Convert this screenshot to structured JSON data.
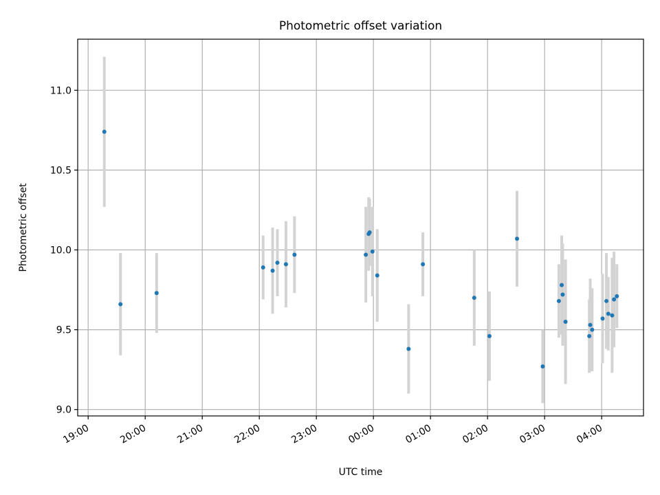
{
  "chart_data": {
    "type": "scatter",
    "title": "Photometric offset variation",
    "xlabel": "UTC time",
    "ylabel": "Photometric offset",
    "xlim": [
      "18:49",
      "04:44"
    ],
    "ylim": [
      8.96,
      11.32
    ],
    "grid": true,
    "x_ticks": [
      "19:00",
      "20:00",
      "21:00",
      "22:00",
      "23:00",
      "00:00",
      "01:00",
      "02:00",
      "03:00",
      "04:00"
    ],
    "y_ticks": [
      9.0,
      9.5,
      10.0,
      10.5,
      11.0
    ],
    "y_tick_labels": [
      "9.0",
      "9.5",
      "10.0",
      "10.5",
      "11.0"
    ],
    "colors": {
      "marker": "#1f77b4",
      "errorbar": "#d3d3d3",
      "grid": "#b0b0b0"
    },
    "series": [
      {
        "points": [
          {
            "x": "19:17",
            "y": 10.74,
            "err": 0.47
          },
          {
            "x": "19:34",
            "y": 9.66,
            "err": 0.32
          },
          {
            "x": "20:12",
            "y": 9.73,
            "err": 0.25
          },
          {
            "x": "22:04",
            "y": 9.89,
            "err": 0.2
          },
          {
            "x": "22:14",
            "y": 9.87,
            "err": 0.27
          },
          {
            "x": "22:19",
            "y": 9.92,
            "err": 0.21
          },
          {
            "x": "22:28",
            "y": 9.91,
            "err": 0.27
          },
          {
            "x": "22:37",
            "y": 9.97,
            "err": 0.24
          },
          {
            "x": "23:52",
            "y": 9.97,
            "err": 0.3
          },
          {
            "x": "23:55",
            "y": 10.1,
            "err": 0.23
          },
          {
            "x": "23:56",
            "y": 10.11,
            "err": 0.21
          },
          {
            "x": "23:59",
            "y": 9.99,
            "err": 0.28
          },
          {
            "x": "00:04",
            "y": 9.84,
            "err": 0.29
          },
          {
            "x": "00:37",
            "y": 9.38,
            "err": 0.28
          },
          {
            "x": "00:52",
            "y": 9.91,
            "err": 0.2
          },
          {
            "x": "01:46",
            "y": 9.7,
            "err": 0.3
          },
          {
            "x": "02:02",
            "y": 9.46,
            "err": 0.28
          },
          {
            "x": "02:31",
            "y": 10.07,
            "err": 0.3
          },
          {
            "x": "02:58",
            "y": 9.27,
            "err": 0.23
          },
          {
            "x": "03:15",
            "y": 9.68,
            "err": 0.23
          },
          {
            "x": "03:18",
            "y": 9.78,
            "err": 0.31
          },
          {
            "x": "03:19",
            "y": 9.72,
            "err": 0.32
          },
          {
            "x": "03:22",
            "y": 9.55,
            "err": 0.39
          },
          {
            "x": "03:47",
            "y": 9.46,
            "err": 0.23
          },
          {
            "x": "03:48",
            "y": 9.53,
            "err": 0.29
          },
          {
            "x": "03:50",
            "y": 9.5,
            "err": 0.26
          },
          {
            "x": "04:01",
            "y": 9.57,
            "err": 0.28
          },
          {
            "x": "04:05",
            "y": 9.68,
            "err": 0.3
          },
          {
            "x": "04:07",
            "y": 9.6,
            "err": 0.23
          },
          {
            "x": "04:11",
            "y": 9.59,
            "err": 0.36
          },
          {
            "x": "04:13",
            "y": 9.69,
            "err": 0.3
          },
          {
            "x": "04:16",
            "y": 9.71,
            "err": 0.2
          }
        ]
      }
    ]
  }
}
